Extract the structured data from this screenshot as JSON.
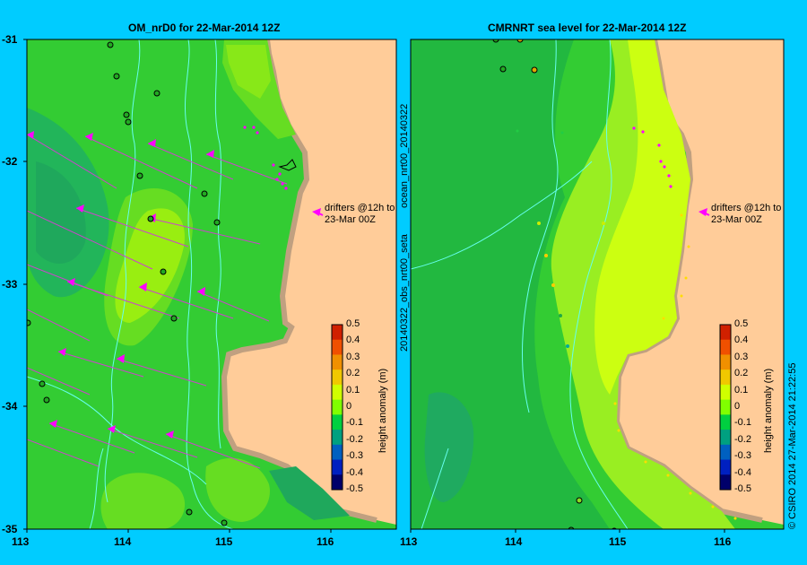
{
  "panels": [
    {
      "title": "OM_nrD0 for 22-Mar-2014 12Z"
    },
    {
      "title": "CMRNRT sea level  for 22-Mar-2014 12Z"
    }
  ],
  "y_ticks": [
    "-31",
    "-32",
    "-33",
    "-34",
    "-35"
  ],
  "x_ticks": [
    "113",
    "114",
    "115",
    "116"
  ],
  "colorbar": {
    "label": "height anomaly (m)",
    "ticks": [
      "0.5",
      "0.4",
      "0.3",
      "0.2",
      "0.1",
      "0",
      "-0.1",
      "-0.2",
      "-0.3",
      "-0.4",
      "-0.5"
    ],
    "colors": [
      "#d02000",
      "#f05000",
      "#f09000",
      "#f0c800",
      "#d0ff00",
      "#80ff00",
      "#00d040",
      "#00a080",
      "#0060c0",
      "#0020c0",
      "#00006a"
    ]
  },
  "drifter_note": {
    "line1": "drifters @12h to",
    "line2": "23-Mar 00Z"
  },
  "side_text": {
    "file_label": "20140322_obs_nrt00_seta",
    "ocean_label": "ocean_nrt00_20140322",
    "credit": "© CSIRO 2014   27-Mar-2014 21:22:55"
  },
  "colors": {
    "background": "#00ccff",
    "land": "#ffcc99",
    "coast": "#c0a080",
    "drifter": "#ff00ff"
  }
}
